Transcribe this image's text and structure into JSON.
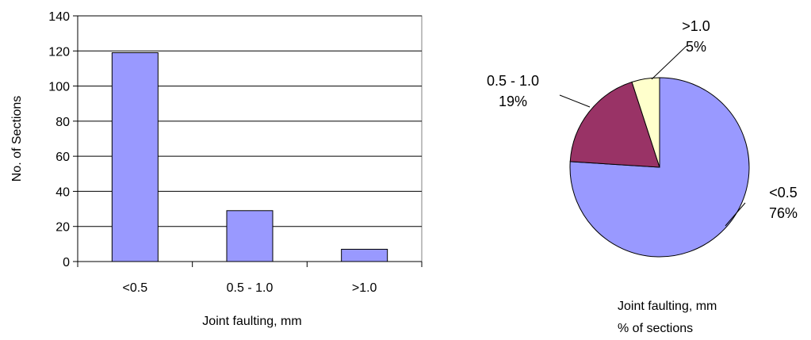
{
  "colors": {
    "bar_fill": "#9999ff",
    "grid": "#000000",
    "pie_lt05": "#9999ff",
    "pie_05_10": "#993366",
    "pie_gt10": "#ffffcc"
  },
  "chart_data": [
    {
      "type": "bar",
      "categories": [
        "<0.5",
        "0.5 - 1.0",
        ">1.0"
      ],
      "values": [
        119,
        29,
        7
      ],
      "title": "",
      "xlabel": "Joint faulting, mm",
      "ylabel": "No. of Sections",
      "ylim": [
        0,
        140
      ],
      "yticks": [
        0,
        20,
        40,
        60,
        80,
        100,
        120,
        140
      ],
      "grid": true,
      "legend": "none"
    },
    {
      "type": "pie",
      "labels": [
        "<0.5",
        "0.5 - 1.0",
        ">1.0"
      ],
      "values": [
        76,
        19,
        5
      ],
      "value_labels": [
        "76%",
        "19%",
        "5%"
      ],
      "caption_line1": "Joint faulting, mm",
      "caption_line2": "% of sections",
      "legend": "none"
    }
  ]
}
